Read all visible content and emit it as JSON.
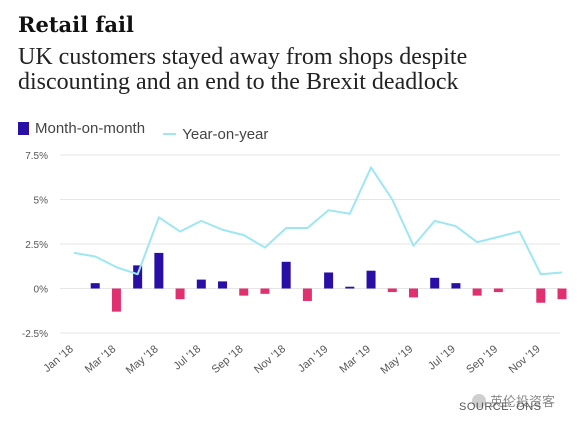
{
  "title": "Retail fail",
  "subtitle": "UK customers stayed away from shops despite discounting and an end to the Brexit deadlock",
  "source": "SOURCE: ONS",
  "watermark": "英伦投资客",
  "colors": {
    "mom": "#2a0fa6",
    "mom_negative": "#e0306f",
    "yoy": "#9ee6f2",
    "grid": "#e6e6e6",
    "axis": "#555555"
  },
  "chart_data": {
    "type": "bar",
    "categories": [
      "Jan '18",
      "Feb '18",
      "Mar '18",
      "Apr '18",
      "May '18",
      "Jun '18",
      "Jul '18",
      "Aug '18",
      "Sep '18",
      "Oct '18",
      "Nov '18",
      "Dec '18",
      "Jan '19",
      "Feb '19",
      "Mar '19",
      "Apr '19",
      "May '19",
      "Jun '19",
      "Jul '19",
      "Aug '19",
      "Sep '19",
      "Oct '19",
      "Nov '19",
      "Dec '19"
    ],
    "tick_labels": [
      "Jan '18",
      "",
      "Mar '18",
      "",
      "May '18",
      "",
      "Jul '18",
      "",
      "Sep '18",
      "",
      "Nov '18",
      "",
      "Jan '19",
      "",
      "Mar '19",
      "",
      "May '19",
      "",
      "Jul '19",
      "",
      "Sep '19",
      "",
      "Nov '19",
      ""
    ],
    "series": [
      {
        "name": "Month-on-month",
        "type": "bar",
        "values": [
          0.0,
          0.3,
          -1.3,
          1.3,
          2.0,
          -0.6,
          0.5,
          0.4,
          -0.4,
          -0.3,
          1.5,
          -0.7,
          0.9,
          0.1,
          1.0,
          -0.2,
          -0.5,
          0.6,
          0.3,
          -0.4,
          -0.2,
          0.0,
          -0.8,
          -0.6
        ]
      },
      {
        "name": "Year-on-year",
        "type": "line",
        "values": [
          2.0,
          1.8,
          1.2,
          0.8,
          4.0,
          3.2,
          3.8,
          3.3,
          3.0,
          2.3,
          3.4,
          3.4,
          4.4,
          4.2,
          6.8,
          5.0,
          2.4,
          3.8,
          3.5,
          2.6,
          2.9,
          3.2,
          0.8,
          0.9
        ]
      }
    ],
    "ylim": [
      -2.5,
      7.5
    ],
    "yticks": [
      -2.5,
      0,
      2.5,
      5,
      7.5
    ],
    "ytick_labels": [
      "-2.5%",
      "0%",
      "2.5%",
      "5%",
      "7.5%"
    ],
    "grid": true,
    "legend": "top-left"
  }
}
